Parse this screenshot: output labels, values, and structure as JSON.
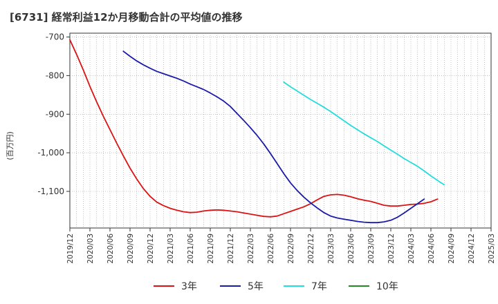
{
  "chart_data": {
    "type": "line",
    "title": "[6731]  経常利益12か月移動合計の平均値の推移",
    "ylabel": "(百万円)",
    "xlabel": "",
    "ylim": [
      -1195,
      -690
    ],
    "yticks": [
      -700,
      -800,
      -900,
      -1000,
      -1100
    ],
    "ytick_labels": [
      "-700",
      "-800",
      "-900",
      "-1,000",
      "-1,100"
    ],
    "x_ticks": [
      "2019/12",
      "2020/03",
      "2020/06",
      "2020/09",
      "2020/12",
      "2021/03",
      "2021/06",
      "2021/09",
      "2021/12",
      "2022/03",
      "2022/06",
      "2022/09",
      "2022/12",
      "2023/03",
      "2023/06",
      "2023/09",
      "2023/12",
      "2024/03",
      "2024/06",
      "2024/09",
      "2024/12",
      "2025/03"
    ],
    "x_start": "2019/12",
    "x_end": "2025/03",
    "grid": true,
    "series": [
      {
        "name": "3年",
        "color": "#dd1111",
        "start": "2019/12",
        "values": [
          -707,
          -745,
          -785,
          -828,
          -868,
          -905,
          -940,
          -975,
          -1008,
          -1040,
          -1068,
          -1093,
          -1113,
          -1128,
          -1137,
          -1144,
          -1149,
          -1153,
          -1155,
          -1154,
          -1151,
          -1149,
          -1148,
          -1149,
          -1151,
          -1153,
          -1156,
          -1159,
          -1162,
          -1165,
          -1166,
          -1164,
          -1158,
          -1152,
          -1146,
          -1140,
          -1132,
          -1122,
          -1113,
          -1109,
          -1108,
          -1110,
          -1114,
          -1119,
          -1123,
          -1126,
          -1131,
          -1136,
          -1138,
          -1138,
          -1136,
          -1134,
          -1133,
          -1131,
          -1127,
          -1120
        ]
      },
      {
        "name": "5年",
        "color": "#1a1aaa",
        "start": "2020/08",
        "values": [
          -737,
          -750,
          -762,
          -772,
          -781,
          -789,
          -795,
          -801,
          -807,
          -814,
          -822,
          -829,
          -836,
          -845,
          -855,
          -866,
          -880,
          -898,
          -916,
          -935,
          -955,
          -977,
          -1002,
          -1028,
          -1054,
          -1078,
          -1098,
          -1115,
          -1130,
          -1143,
          -1155,
          -1164,
          -1169,
          -1172,
          -1175,
          -1178,
          -1180,
          -1181,
          -1181,
          -1179,
          -1175,
          -1167,
          -1156,
          -1144,
          -1132,
          -1120
        ]
      },
      {
        "name": "7年",
        "color": "#22dddd",
        "start": "2022/08",
        "values": [
          -817,
          -829,
          -840,
          -851,
          -862,
          -872,
          -882,
          -893,
          -905,
          -917,
          -929,
          -940,
          -951,
          -961,
          -971,
          -982,
          -993,
          -1004,
          -1015,
          -1025,
          -1035,
          -1047,
          -1060,
          -1072,
          -1083
        ]
      },
      {
        "name": "10年",
        "color": "#228822",
        "start": "2024/12",
        "values": []
      }
    ]
  }
}
